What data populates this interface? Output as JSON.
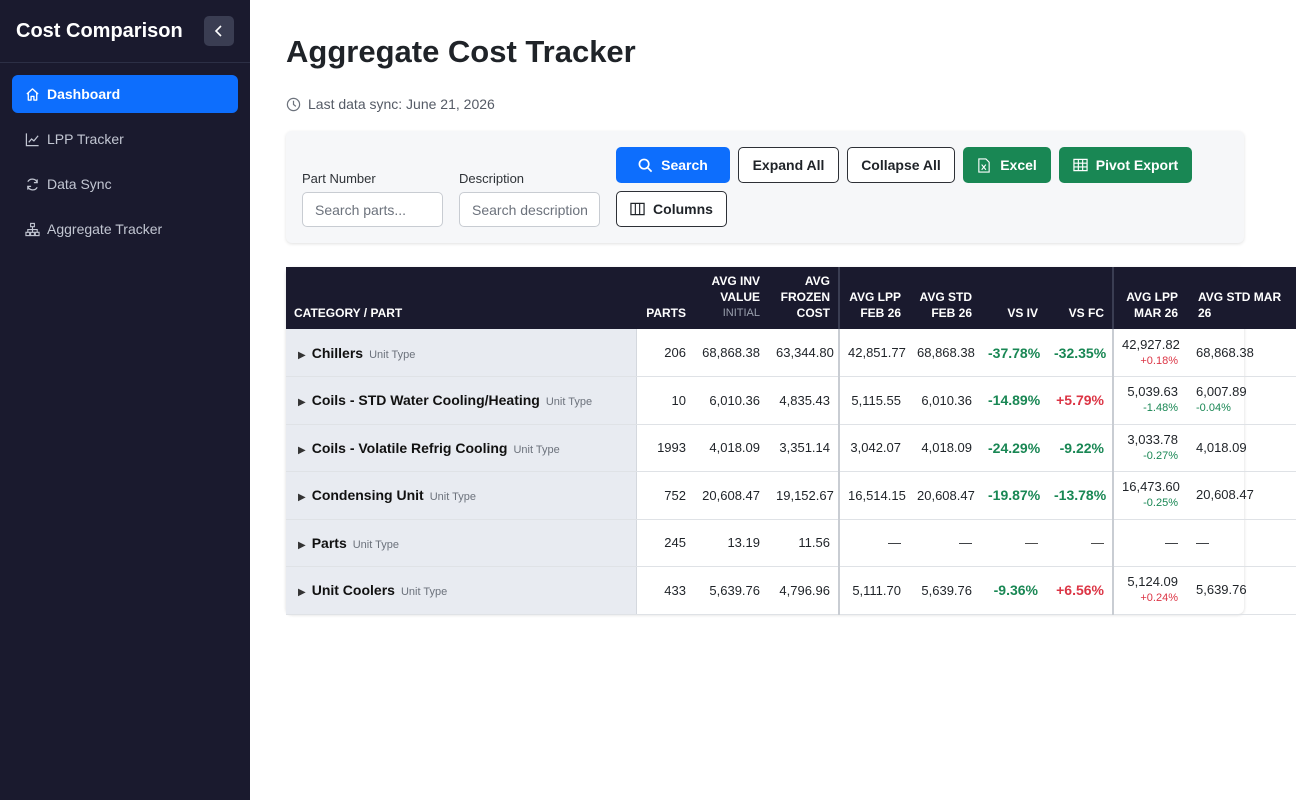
{
  "sidebar": {
    "brand": "Cost Comparison",
    "items": [
      {
        "label": "Dashboard",
        "icon": "home-icon",
        "active": true
      },
      {
        "label": "LPP Tracker",
        "icon": "line-chart-icon",
        "active": false
      },
      {
        "label": "Data Sync",
        "icon": "sync-icon",
        "active": false
      },
      {
        "label": "Aggregate Tracker",
        "icon": "hierarchy-icon",
        "active": false
      }
    ]
  },
  "header": {
    "title": "Aggregate Cost Tracker",
    "sync_text": "Last data sync: June 21, 2026"
  },
  "filters": {
    "part_number": {
      "label": "Part Number",
      "placeholder": "Search parts..."
    },
    "description": {
      "label": "Description",
      "placeholder": "Search description"
    },
    "buttons": {
      "search": "Search",
      "expand_all": "Expand All",
      "collapse_all": "Collapse All",
      "excel": "Excel",
      "pivot_export": "Pivot Export",
      "columns": "Columns"
    }
  },
  "table": {
    "headers": {
      "category": "CATEGORY / PART",
      "parts": "PARTS",
      "avg_inv_value": "AVG INV VALUE",
      "avg_inv_value_sub": "INITIAL",
      "avg_frozen_cost": "AVG FROZEN COST",
      "avg_lpp_feb": "AVG LPP FEB 26",
      "avg_std_feb": "AVG STD FEB 26",
      "vs_iv": "VS IV",
      "vs_fc": "VS FC",
      "avg_lpp_mar": "AVG LPP MAR 26",
      "avg_std_mar": "AVG STD MAR 26"
    },
    "rows": [
      {
        "name": "Chillers",
        "type": "Unit Type",
        "parts": "206",
        "inv": "68,868.38",
        "frozen": "63,344.80",
        "lpp_feb": "42,851.77",
        "std_feb": "68,868.38",
        "vs_iv": "-37.78%",
        "vs_iv_sign": "pos",
        "vs_fc": "-32.35%",
        "vs_fc_sign": "pos",
        "lpp_mar": "42,927.82",
        "lpp_mar_delta": "+0.18%",
        "lpp_mar_delta_dir": "up",
        "std_mar": "68,868.38",
        "std_mar_delta": ""
      },
      {
        "name": "Coils - STD Water Cooling/Heating",
        "type": "Unit Type",
        "parts": "10",
        "inv": "6,010.36",
        "frozen": "4,835.43",
        "lpp_feb": "5,115.55",
        "std_feb": "6,010.36",
        "vs_iv": "-14.89%",
        "vs_iv_sign": "pos",
        "vs_fc": "+5.79%",
        "vs_fc_sign": "neg",
        "lpp_mar": "5,039.63",
        "lpp_mar_delta": "-1.48%",
        "lpp_mar_delta_dir": "down",
        "std_mar": "6,007.89",
        "std_mar_delta": "-0.04%"
      },
      {
        "name": "Coils - Volatile Refrig Cooling",
        "type": "Unit Type",
        "parts": "1993",
        "inv": "4,018.09",
        "frozen": "3,351.14",
        "lpp_feb": "3,042.07",
        "std_feb": "4,018.09",
        "vs_iv": "-24.29%",
        "vs_iv_sign": "pos",
        "vs_fc": "-9.22%",
        "vs_fc_sign": "pos",
        "lpp_mar": "3,033.78",
        "lpp_mar_delta": "-0.27%",
        "lpp_mar_delta_dir": "down",
        "std_mar": "4,018.09",
        "std_mar_delta": ""
      },
      {
        "name": "Condensing Unit",
        "type": "Unit Type",
        "parts": "752",
        "inv": "20,608.47",
        "frozen": "19,152.67",
        "lpp_feb": "16,514.15",
        "std_feb": "20,608.47",
        "vs_iv": "-19.87%",
        "vs_iv_sign": "pos",
        "vs_fc": "-13.78%",
        "vs_fc_sign": "pos",
        "lpp_mar": "16,473.60",
        "lpp_mar_delta": "-0.25%",
        "lpp_mar_delta_dir": "down",
        "std_mar": "20,608.47",
        "std_mar_delta": ""
      },
      {
        "name": "Parts",
        "type": "Unit Type",
        "parts": "245",
        "inv": "13.19",
        "frozen": "11.56",
        "lpp_feb": "—",
        "std_feb": "—",
        "vs_iv": "—",
        "vs_iv_sign": "none",
        "vs_fc": "—",
        "vs_fc_sign": "none",
        "lpp_mar": "—",
        "lpp_mar_delta": "",
        "lpp_mar_delta_dir": "",
        "std_mar": "—",
        "std_mar_delta": ""
      },
      {
        "name": "Unit Coolers",
        "type": "Unit Type",
        "parts": "433",
        "inv": "5,639.76",
        "frozen": "4,796.96",
        "lpp_feb": "5,111.70",
        "std_feb": "5,639.76",
        "vs_iv": "-9.36%",
        "vs_iv_sign": "pos",
        "vs_fc": "+6.56%",
        "vs_fc_sign": "neg",
        "lpp_mar": "5,124.09",
        "lpp_mar_delta": "+0.24%",
        "lpp_mar_delta_dir": "up",
        "std_mar": "5,639.76",
        "std_mar_delta": ""
      }
    ]
  },
  "colors": {
    "sidebar_bg": "#1a1a2e",
    "primary": "#0d6efd",
    "success": "#198754",
    "danger": "#dc3545"
  }
}
